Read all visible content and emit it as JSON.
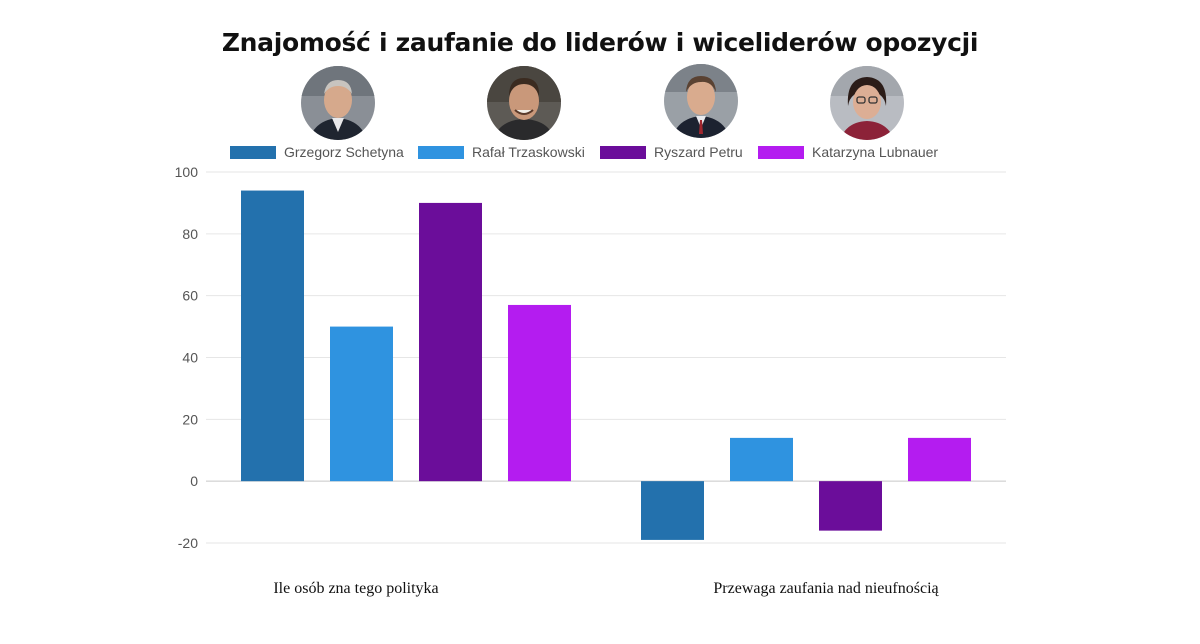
{
  "chart_data": {
    "type": "bar",
    "title": "Znajomość i zaufanie do liderów i wiceliderów opozycji",
    "categories": [
      "Ile osób zna tego polityka",
      "Przewaga zaufania nad nieufnością"
    ],
    "series": [
      {
        "name": "Grzegorz Schetyna",
        "color": "#2371ad",
        "values": [
          94,
          -19
        ]
      },
      {
        "name": "Rafał Trzaskowski",
        "color": "#2f93e0",
        "values": [
          50,
          14
        ]
      },
      {
        "name": "Ryszard Petru",
        "color": "#6b0d9a",
        "values": [
          90,
          -16
        ]
      },
      {
        "name": "Katarzyna Lubnauer",
        "color": "#b41cf0",
        "values": [
          57,
          14
        ]
      }
    ],
    "yticks": [
      100,
      80,
      60,
      40,
      20,
      0,
      -20
    ],
    "ylim": [
      -20,
      100
    ],
    "grid": true,
    "legend": "top",
    "xlabel": "",
    "ylabel": ""
  },
  "avatars": [
    {
      "icon": "portrait-photo-icon"
    },
    {
      "icon": "portrait-photo-icon"
    },
    {
      "icon": "portrait-photo-icon"
    },
    {
      "icon": "portrait-photo-icon"
    }
  ]
}
